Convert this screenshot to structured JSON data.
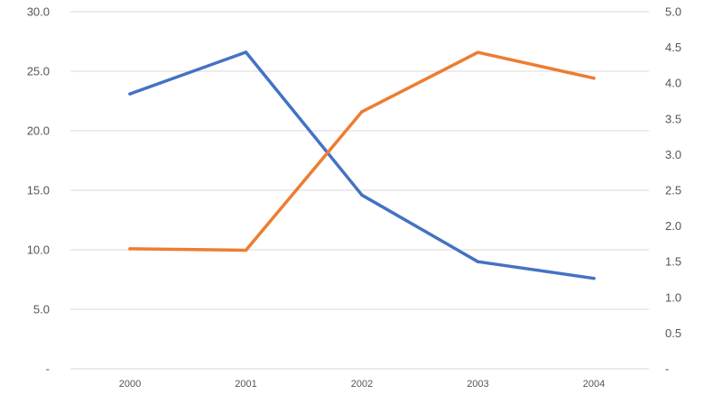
{
  "chart_data": {
    "type": "line",
    "title": "",
    "xlabel": "",
    "ylabel": "",
    "categories": [
      "2000",
      "2001",
      "2002",
      "2003",
      "2004"
    ],
    "y_left": {
      "lim": [
        0,
        30
      ],
      "ticks": [
        0,
        5,
        10,
        15,
        20,
        25,
        30
      ],
      "tick_labels": [
        "-",
        "5.0",
        "10.0",
        "15.0",
        "20.0",
        "25.0",
        "30.0"
      ]
    },
    "y_right": {
      "lim": [
        0,
        5
      ],
      "ticks": [
        0,
        0.5,
        1,
        1.5,
        2,
        2.5,
        3,
        3.5,
        4,
        4.5,
        5
      ],
      "tick_labels": [
        "-",
        "0.5",
        "1.0",
        "1.5",
        "2.0",
        "2.5",
        "3.0",
        "3.5",
        "4.0",
        "4.5",
        "5.0"
      ]
    },
    "grid": true,
    "legend": "none",
    "series": [
      {
        "axis": "left",
        "color": "#4472c4",
        "values": [
          23.1,
          26.6,
          14.6,
          9.0,
          7.6
        ]
      },
      {
        "axis": "right",
        "color": "#ed7d31",
        "values": [
          1.68,
          1.66,
          3.6,
          4.43,
          4.07
        ]
      }
    ]
  }
}
